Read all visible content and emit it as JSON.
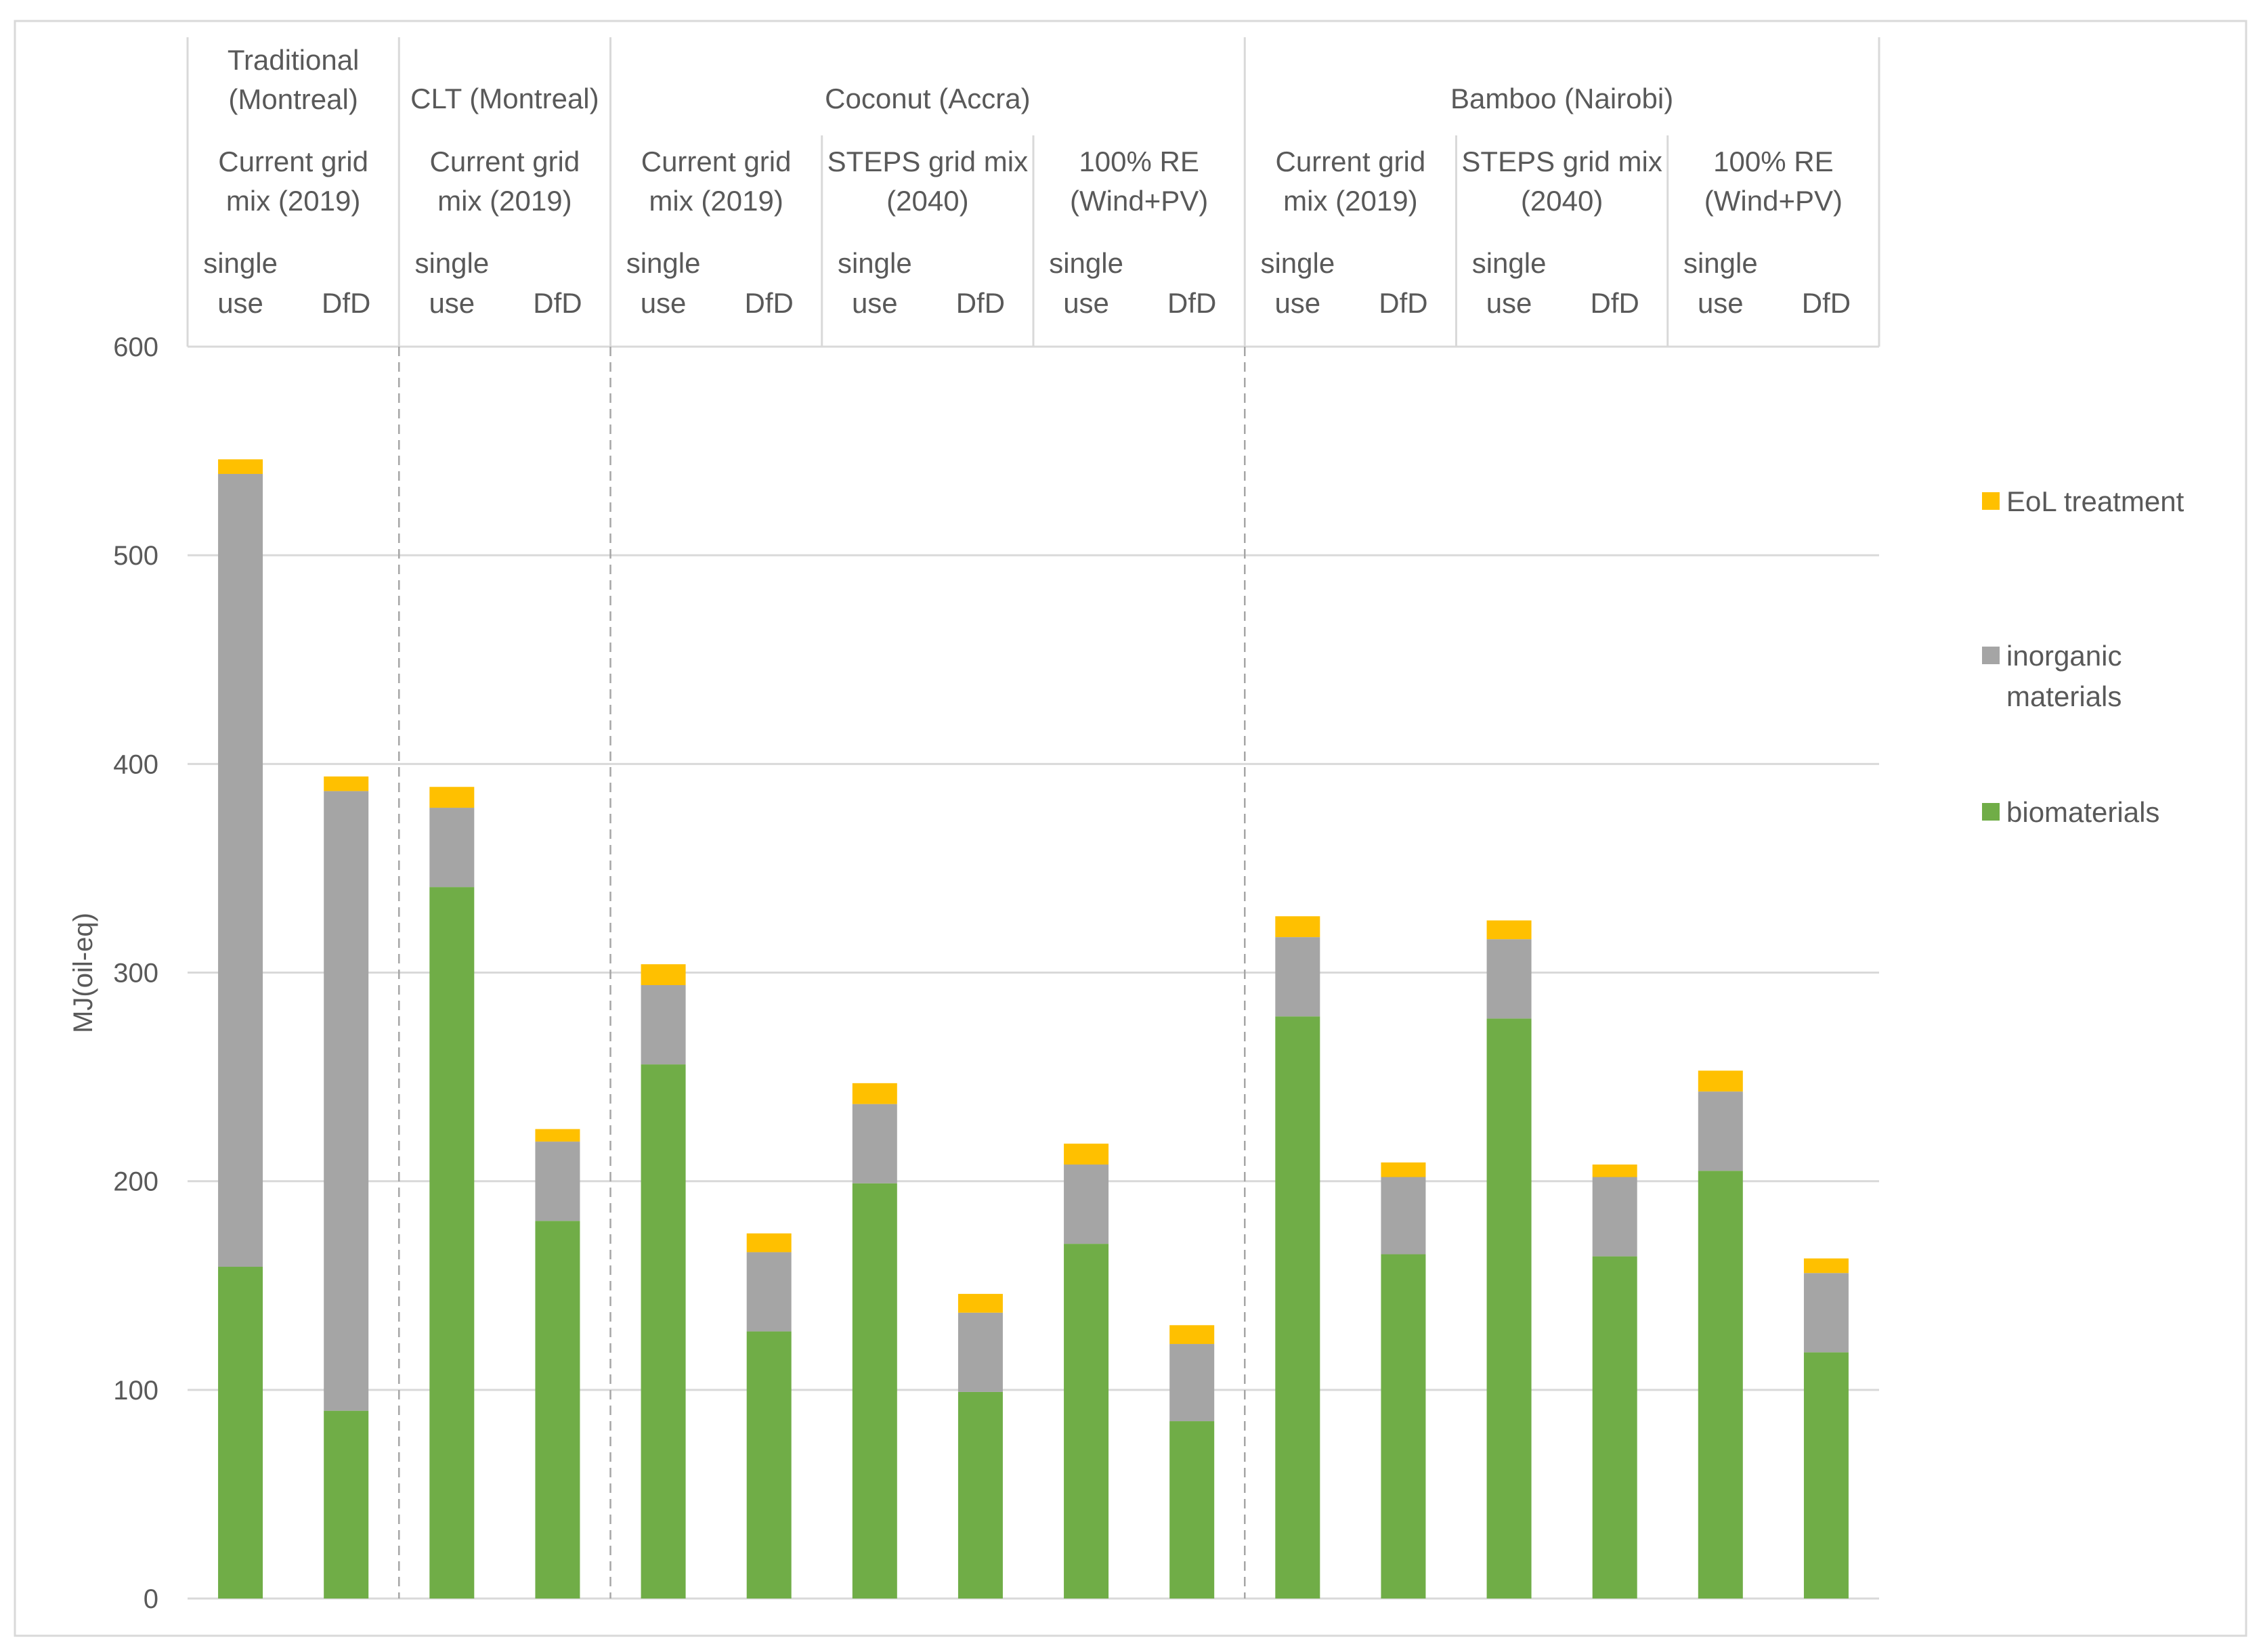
{
  "chart_data": {
    "type": "bar",
    "stacked": true,
    "ylabel": "MJ(oil-eq)",
    "ylim": [
      0,
      600
    ],
    "yticks": [
      0,
      100,
      200,
      300,
      400,
      500,
      600
    ],
    "grid": true,
    "legend_position": "right",
    "groups": [
      {
        "label_lines": [
          "Traditional",
          "(Montreal)"
        ],
        "span": [
          0,
          1
        ]
      },
      {
        "label_lines": [
          "CLT (Montreal)"
        ],
        "span": [
          2,
          3
        ]
      },
      {
        "label_lines": [
          "Coconut (Accra)"
        ],
        "span": [
          4,
          9
        ]
      },
      {
        "label_lines": [
          "Bamboo (Nairobi)"
        ],
        "span": [
          10,
          15
        ]
      }
    ],
    "subgroups": [
      {
        "label_lines": [
          "Current grid",
          "mix (2019)"
        ],
        "span": [
          0,
          1
        ]
      },
      {
        "label_lines": [
          "Current grid",
          "mix (2019)"
        ],
        "span": [
          2,
          3
        ]
      },
      {
        "label_lines": [
          "Current grid",
          "mix (2019)"
        ],
        "span": [
          4,
          5
        ]
      },
      {
        "label_lines": [
          "STEPS grid mix",
          "(2040)"
        ],
        "span": [
          6,
          7
        ]
      },
      {
        "label_lines": [
          "100% RE",
          "(Wind+PV)"
        ],
        "span": [
          8,
          9
        ]
      },
      {
        "label_lines": [
          "Current grid",
          "mix (2019)"
        ],
        "span": [
          10,
          11
        ]
      },
      {
        "label_lines": [
          "STEPS grid mix",
          "(2040)"
        ],
        "span": [
          12,
          13
        ]
      },
      {
        "label_lines": [
          "100% RE",
          "(Wind+PV)"
        ],
        "span": [
          14,
          15
        ]
      }
    ],
    "categories": [
      {
        "lines": [
          "single",
          "use"
        ]
      },
      {
        "lines": [
          "DfD"
        ]
      },
      {
        "lines": [
          "single",
          "use"
        ]
      },
      {
        "lines": [
          "DfD"
        ]
      },
      {
        "lines": [
          "single",
          "use"
        ]
      },
      {
        "lines": [
          "DfD"
        ]
      },
      {
        "lines": [
          "single",
          "use"
        ]
      },
      {
        "lines": [
          "DfD"
        ]
      },
      {
        "lines": [
          "single",
          "use"
        ]
      },
      {
        "lines": [
          "DfD"
        ]
      },
      {
        "lines": [
          "single",
          "use"
        ]
      },
      {
        "lines": [
          "DfD"
        ]
      },
      {
        "lines": [
          "single",
          "use"
        ]
      },
      {
        "lines": [
          "DfD"
        ]
      },
      {
        "lines": [
          "single",
          "use"
        ]
      },
      {
        "lines": [
          "DfD"
        ]
      }
    ],
    "series": [
      {
        "name": "biomaterials",
        "color": "#70ad47",
        "values": [
          159,
          90,
          341,
          181,
          256,
          128,
          199,
          99,
          170,
          85,
          279,
          165,
          278,
          164,
          205,
          118
        ]
      },
      {
        "name": "inorganic materials",
        "color": "#a5a5a5",
        "values": [
          380,
          297,
          38,
          38,
          38,
          38,
          38,
          38,
          38,
          37,
          38,
          37,
          38,
          38,
          38,
          38
        ]
      },
      {
        "name": "EoL treatment",
        "color": "#ffc000",
        "values": [
          7,
          7,
          10,
          6,
          10,
          9,
          10,
          9,
          10,
          9,
          10,
          7,
          9,
          6,
          10,
          7
        ]
      }
    ],
    "legend_order": [
      "EoL treatment",
      "inorganic materials",
      "biomaterials"
    ],
    "legend_label_lines": {
      "EoL treatment": [
        "EoL treatment"
      ],
      "inorganic materials": [
        "inorganic",
        "materials"
      ],
      "biomaterials": [
        "biomaterials"
      ]
    },
    "group_dividers_after": [
      1,
      3,
      9
    ]
  }
}
